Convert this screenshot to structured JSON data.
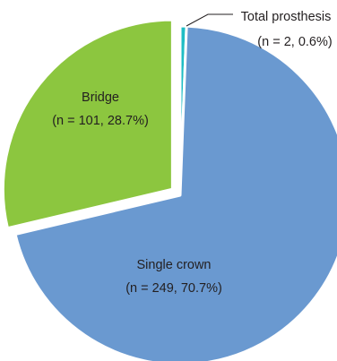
{
  "chart_data": {
    "type": "pie",
    "title": "",
    "slices": [
      {
        "name": "Total prosthesis",
        "n_label": "(n = 2, 0.6%)",
        "n": 2,
        "percent": 0.6,
        "color": "#1fbdc4"
      },
      {
        "name": "Single crown",
        "n_label": "(n = 249, 70.7%)",
        "n": 249,
        "percent": 70.7,
        "color": "#6a99d0"
      },
      {
        "name": "Bridge",
        "n_label": "(n = 101, 28.7%)",
        "n": 101,
        "percent": 28.7,
        "color": "#8cc63f"
      }
    ],
    "exploded_slice": "Bridge",
    "start_angle": "12 o'clock, clockwise"
  }
}
